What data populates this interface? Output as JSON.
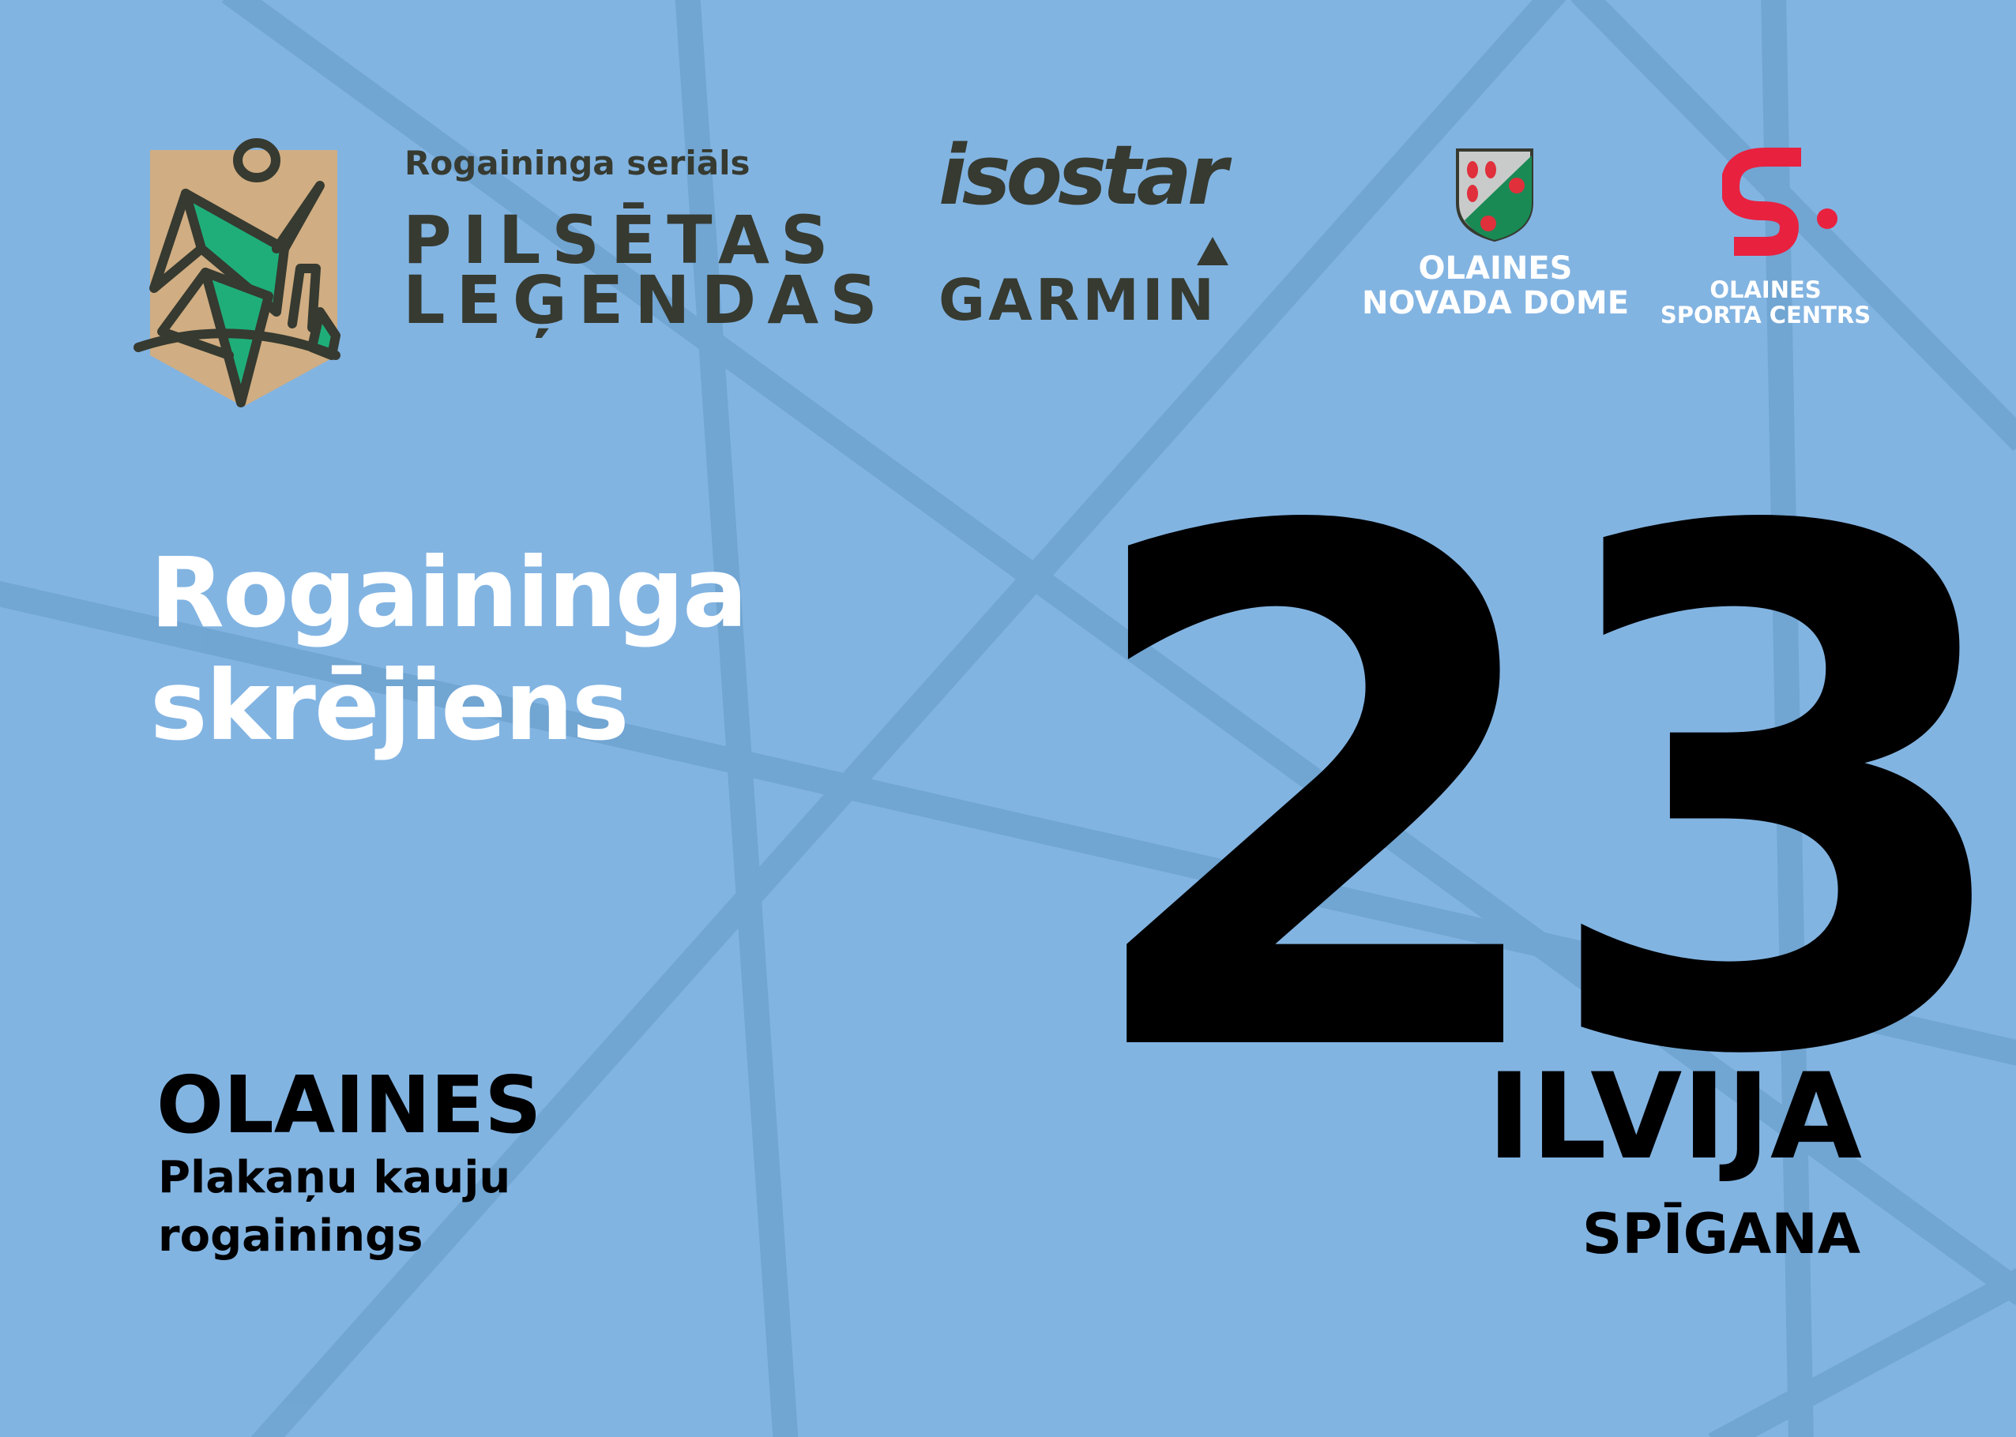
{
  "series": {
    "subtitle": "Rogaininga seriāls",
    "title_line1": "PILSĒTAS",
    "title_line2": "LEĢENDAS",
    "logo_icon": "runner-emblem"
  },
  "sponsors": {
    "isostar": "isostar",
    "garmin": "GARMIN",
    "municipality_line1": "OLAINES",
    "municipality_line2": "NOVADA DOME",
    "municipality_icon": "coat-of-arms",
    "sports_centre_line1": "OLAINES",
    "sports_centre_line2": "SPORTA CENTRS",
    "sports_centre_icon": "s-logo"
  },
  "event": {
    "title_line1": "Rogaininga",
    "title_line2": "skrējiens"
  },
  "bib": {
    "number": "23",
    "first_name": "ILVIJA",
    "last_name": "SPĪGANA"
  },
  "location": {
    "name": "OLAINES",
    "sub_line1": "Plakaņu kauju",
    "sub_line2": "rogainings"
  },
  "colors": {
    "background": "#82b4e2",
    "lines": "#6fa3d0",
    "emblem_tan": "#d0ad82",
    "emblem_green": "#1fae7a",
    "dark": "#363a30",
    "red": "#e8213f"
  }
}
